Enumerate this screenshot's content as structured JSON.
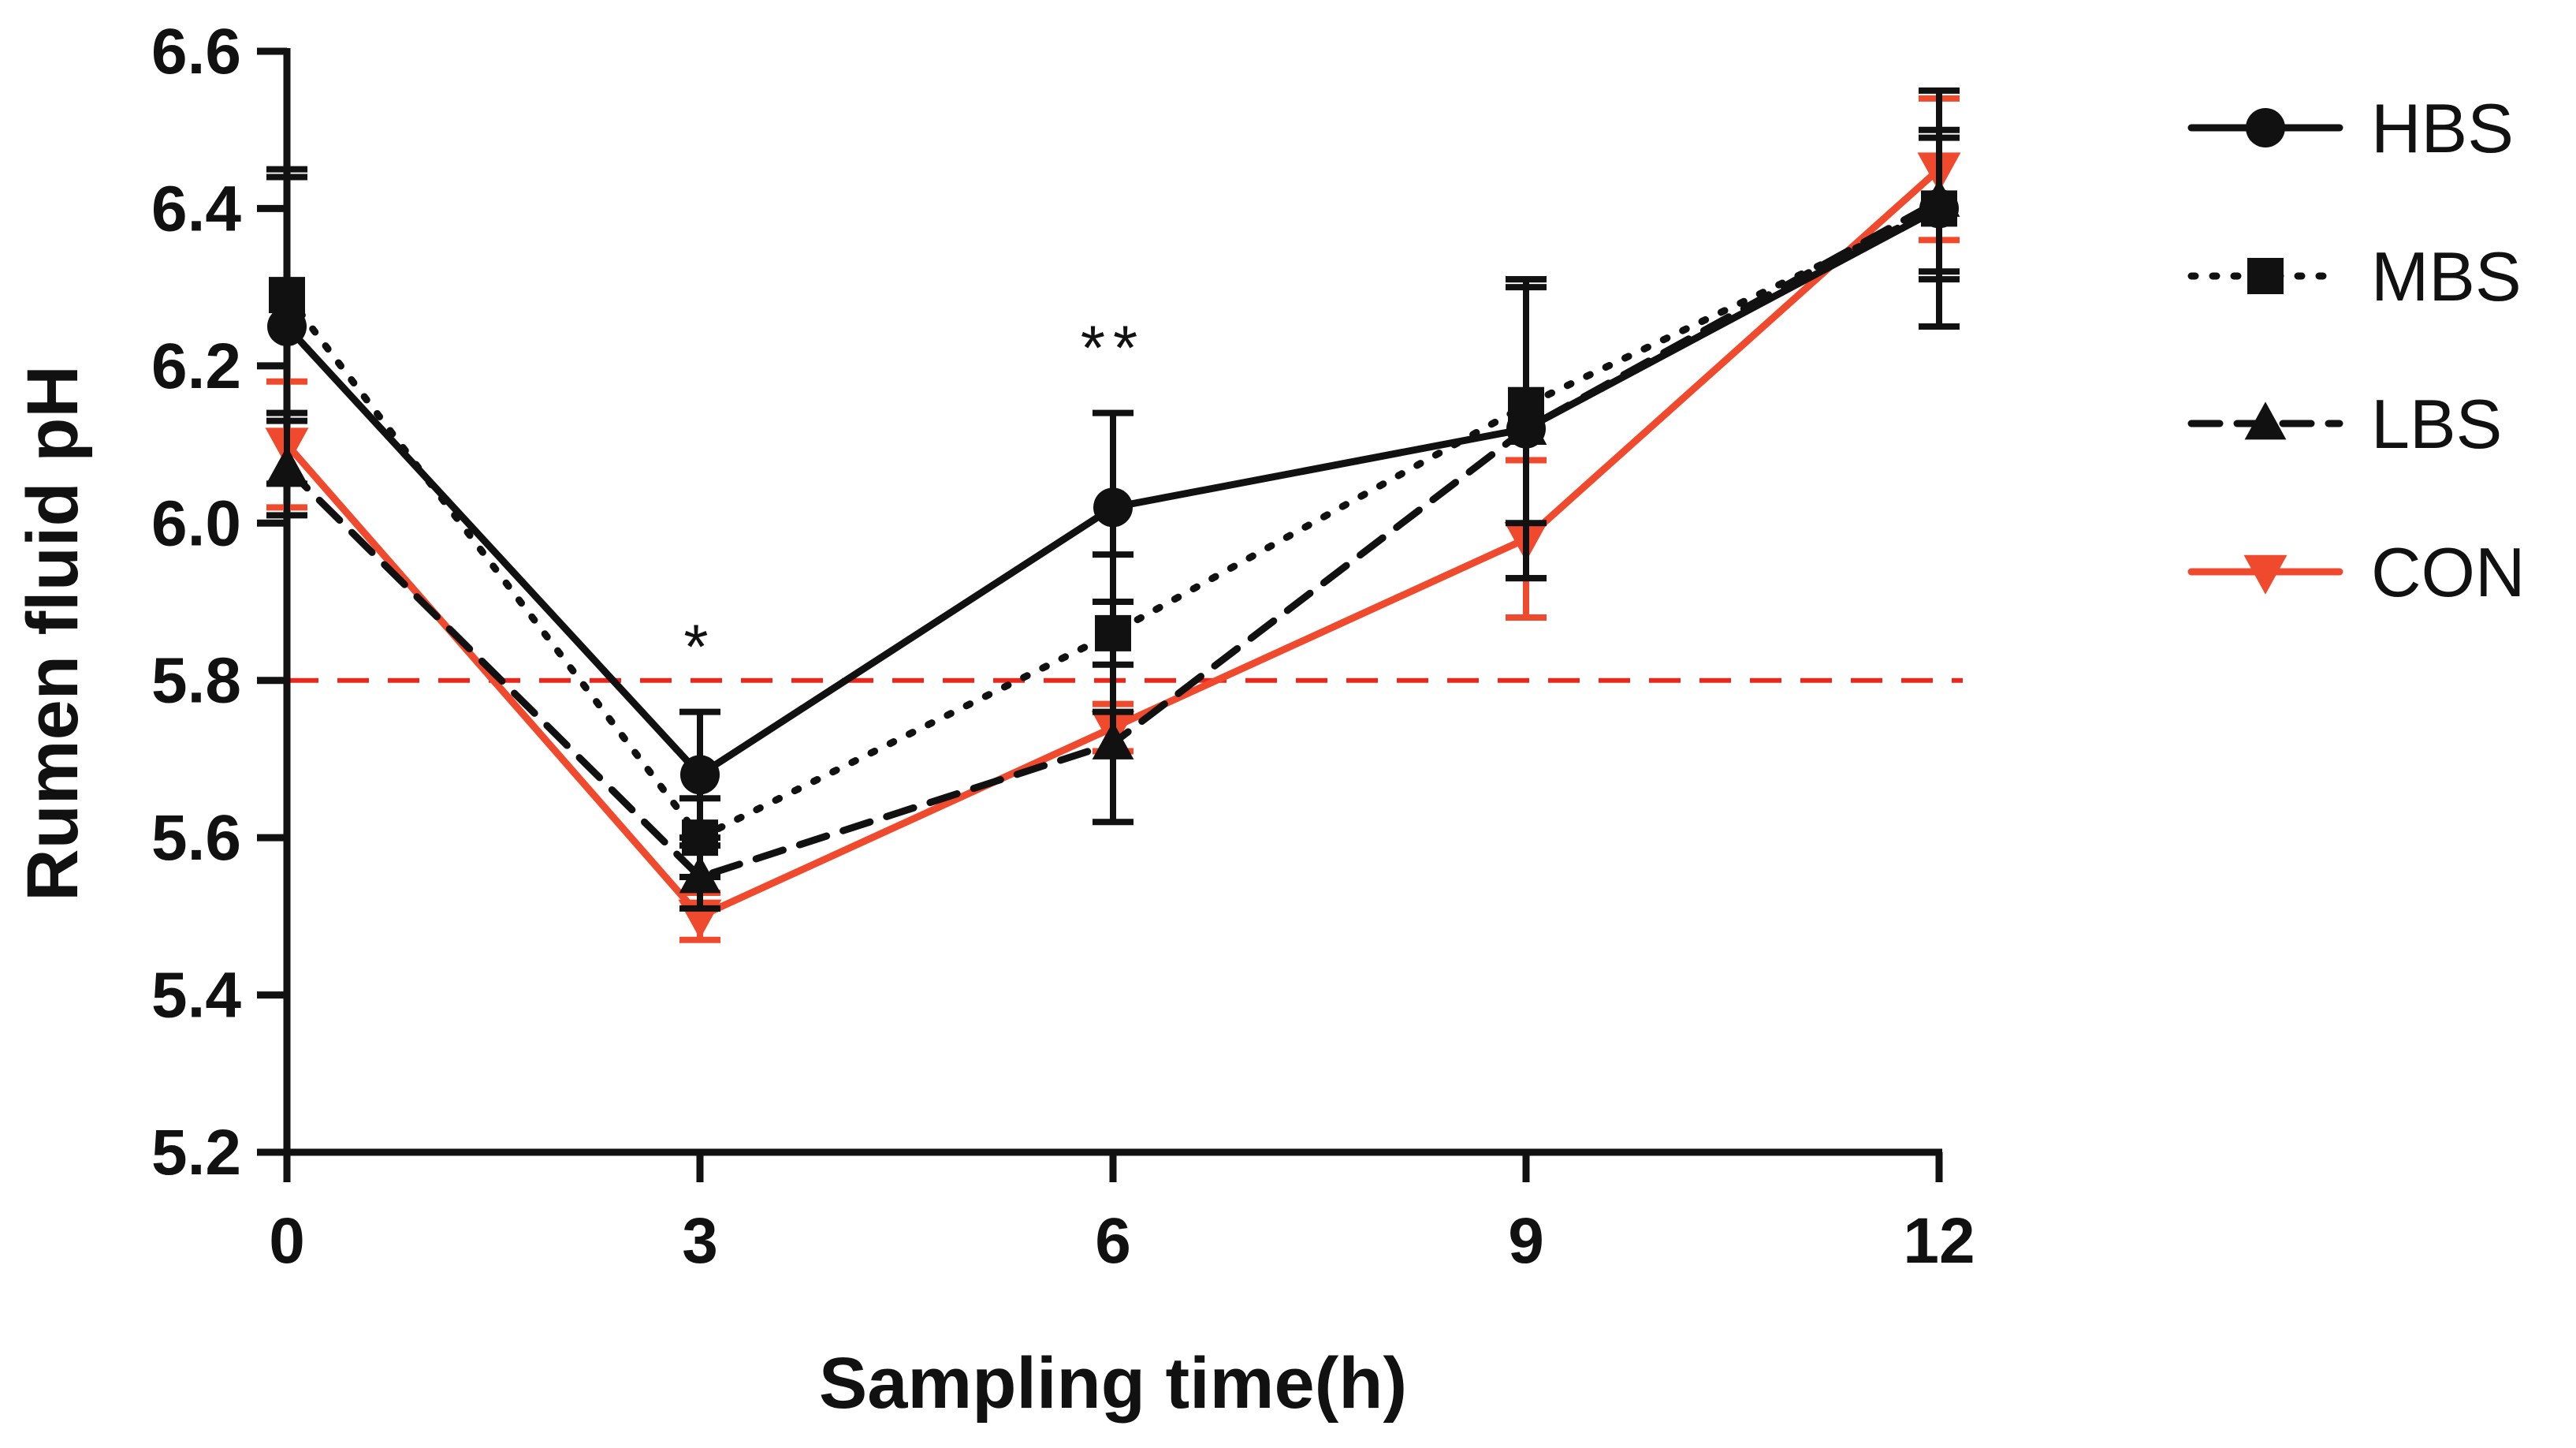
{
  "chart_data": {
    "type": "line",
    "title": "",
    "xlabel": "Sampling time(h)",
    "ylabel": "Rumen fluid pH",
    "x": [
      0,
      3,
      6,
      9,
      12
    ],
    "x_tick_labels": [
      "0",
      "3",
      "6",
      "9",
      "12"
    ],
    "xlim": [
      0,
      12
    ],
    "ylim": [
      5.2,
      6.6
    ],
    "y_ticks": [
      5.2,
      5.4,
      5.6,
      5.8,
      6.0,
      6.2,
      6.4,
      6.6
    ],
    "y_tick_labels": [
      "5.2",
      "5.4",
      "5.6",
      "5.8",
      "6.0",
      "6.2",
      "6.4",
      "6.6"
    ],
    "grid": false,
    "legend_position": "right",
    "reference_line": {
      "y": 5.8,
      "color": "#e8271e",
      "style": "dashed"
    },
    "series": [
      {
        "name": "HBS",
        "color": "#111111",
        "marker": "circle",
        "line_style": "solid",
        "values": [
          6.25,
          5.68,
          6.02,
          6.12,
          6.4
        ],
        "errors": [
          0.2,
          0.08,
          0.12,
          0.19,
          0.15
        ]
      },
      {
        "name": "MBS",
        "color": "#111111",
        "marker": "square",
        "line_style": "dotted",
        "values": [
          6.29,
          5.6,
          5.86,
          6.15,
          6.4
        ],
        "errors": [
          0.15,
          0.05,
          0.1,
          0.15,
          0.09
        ]
      },
      {
        "name": "LBS",
        "color": "#111111",
        "marker": "triangle-up",
        "line_style": "dashed",
        "values": [
          6.07,
          5.55,
          5.72,
          6.12,
          6.41
        ],
        "errors": [
          0.06,
          0.04,
          0.1,
          0.19,
          0.09
        ]
      },
      {
        "name": "CON",
        "color": "#f04a2e",
        "marker": "triangle-down",
        "line_style": "solid",
        "values": [
          6.1,
          5.5,
          5.74,
          5.98,
          6.45
        ],
        "errors": [
          0.08,
          0.03,
          0.03,
          0.1,
          0.09
        ]
      }
    ],
    "annotations": [
      {
        "x": 3,
        "label": "*"
      },
      {
        "x": 6,
        "label": "**"
      }
    ]
  }
}
